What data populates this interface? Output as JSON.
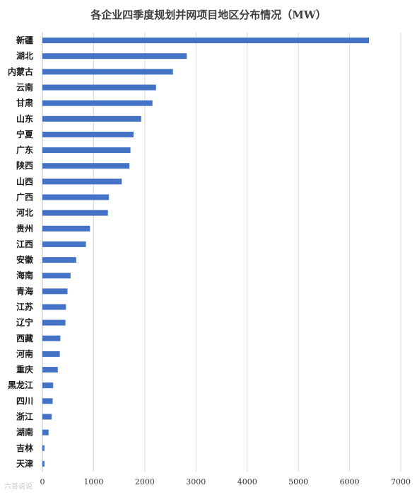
{
  "watermark": "六哥说说",
  "chart_data": {
    "type": "bar",
    "orientation": "horizontal",
    "title": "各企业四季度规划并网项目地区分布情况（MW）",
    "xlabel": "",
    "ylabel": "",
    "categories": [
      "新疆",
      "湖北",
      "内蒙古",
      "云南",
      "甘肃",
      "山东",
      "宁夏",
      "广东",
      "陕西",
      "山西",
      "广西",
      "河北",
      "贵州",
      "江西",
      "安徽",
      "海南",
      "青海",
      "江苏",
      "辽宁",
      "西藏",
      "河南",
      "重庆",
      "黑龙江",
      "四川",
      "浙江",
      "湖南",
      "吉林",
      "天津"
    ],
    "values": [
      6380,
      2820,
      2550,
      2220,
      2150,
      1930,
      1780,
      1720,
      1700,
      1550,
      1300,
      1280,
      930,
      850,
      660,
      550,
      490,
      460,
      450,
      350,
      340,
      300,
      210,
      200,
      180,
      120,
      40,
      40
    ],
    "xlim": [
      0,
      7000
    ],
    "xticks": [
      0,
      1000,
      2000,
      3000,
      4000,
      5000,
      6000,
      7000
    ],
    "bar_color": "#4472c4",
    "grid": true,
    "legend": "none"
  }
}
